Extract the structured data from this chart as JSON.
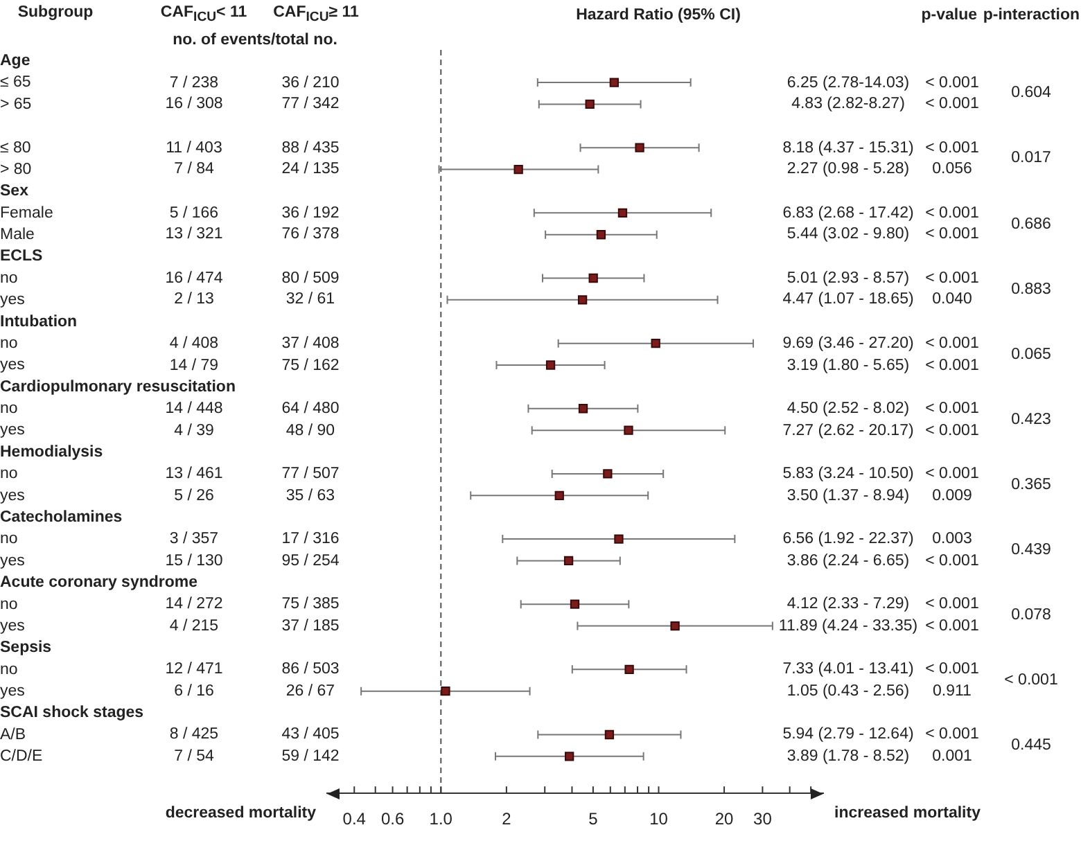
{
  "chart_data": {
    "type": "scatter",
    "orientation": "horizontal",
    "log": "x",
    "marker": "square",
    "color": "#7b1c1c",
    "categories": [
      "Age",
      "≤ 65",
      "> 65",
      null,
      "≤ 80",
      "> 80",
      "Sex",
      "Female",
      "Male",
      "ECLS",
      "no",
      "yes",
      "Intubation",
      "no",
      "yes",
      "Cardiopulmonary resuscitation",
      "no",
      "yes",
      "Hemodialysis",
      "no",
      "yes",
      "Catecholamines",
      "no",
      "yes",
      "Acute coronary syndrome",
      "no",
      "yes",
      "Sepsis",
      "no",
      "yes",
      "SCAI shock stages",
      "A/B",
      "C/D/E"
    ],
    "values": [
      null,
      6.25,
      4.83,
      null,
      8.18,
      2.27,
      null,
      6.83,
      5.44,
      null,
      5.01,
      4.47,
      null,
      9.69,
      3.19,
      null,
      4.5,
      7.27,
      null,
      5.83,
      3.5,
      null,
      6.56,
      3.86,
      null,
      4.12,
      11.89,
      null,
      7.33,
      1.05,
      null,
      5.94,
      3.89
    ],
    "errors": [
      null,
      [
        2.78,
        14.03
      ],
      [
        2.82,
        8.27
      ],
      null,
      [
        4.37,
        15.31
      ],
      [
        0.98,
        5.28
      ],
      null,
      [
        2.68,
        17.42
      ],
      [
        3.02,
        9.8
      ],
      null,
      [
        2.93,
        8.57
      ],
      [
        1.07,
        18.65
      ],
      null,
      [
        3.46,
        27.2
      ],
      [
        1.8,
        5.65
      ],
      null,
      [
        2.52,
        8.02
      ],
      [
        2.62,
        20.17
      ],
      null,
      [
        3.24,
        10.5
      ],
      [
        1.37,
        8.94
      ],
      null,
      [
        1.92,
        22.37
      ],
      [
        2.24,
        6.65
      ],
      null,
      [
        2.33,
        7.29
      ],
      [
        4.24,
        33.35
      ],
      null,
      [
        4.01,
        13.41
      ],
      [
        0.43,
        2.56
      ],
      null,
      [
        2.79,
        12.64
      ],
      [
        1.78,
        8.52
      ]
    ],
    "xlim": [
      0.3,
      57
    ],
    "xticks": [
      0.4,
      {
        "value": 0.5,
        "label": null
      },
      0.6,
      {
        "value": 0.7,
        "label": null
      },
      {
        "value": 0.8,
        "label": null
      },
      {
        "value": 0.9,
        "label": null
      },
      {
        "value": 1,
        "label": "1.0"
      },
      2,
      {
        "value": 3,
        "label": null
      },
      {
        "value": 4,
        "label": null
      },
      5,
      {
        "value": 6,
        "label": null
      },
      {
        "value": 7,
        "label": null
      },
      {
        "value": 8,
        "label": null
      },
      {
        "value": 9,
        "label": null
      },
      10,
      20,
      30,
      {
        "value": 40,
        "label": null
      },
      {
        "value": 50,
        "label": null
      }
    ],
    "ref_lines": [
      {
        "axis": "x",
        "value": 1,
        "line_style": "dashed"
      }
    ],
    "annotations": [
      "Subgroup",
      "CAF$_{ICU}$< 11",
      "CAF$_{ICU}$≥ 11",
      "no. of events/total no.",
      "Hazard Ratio (95% CI)",
      "p-value",
      "p-interaction",
      "decreased mortality",
      "increased mortality",
      "7 / 238",
      "36 / 210",
      "6.25 (2.78-14.03)",
      "< 0.001",
      "0.604",
      "16 / 308",
      "77 / 342",
      "4.83 (2.82-8.27)",
      "< 0.001",
      "11 / 403",
      "88 / 435",
      "8.18 (4.37 - 15.31)",
      "< 0.001",
      "0.017",
      "7 / 84",
      "24 / 135",
      "2.27 (0.98 - 5.28)",
      "0.056",
      "5 / 166",
      "36 / 192",
      "6.83 (2.68 - 17.42)",
      "< 0.001",
      "0.686",
      "13 / 321",
      "76 / 378",
      "5.44 (3.02 - 9.80)",
      "< 0.001",
      "16 / 474",
      "80 / 509",
      "5.01 (2.93 - 8.57)",
      "< 0.001",
      "0.883",
      "2 / 13",
      "32 / 61",
      "4.47 (1.07 - 18.65)",
      "0.040",
      "4 / 408",
      "37 / 408",
      "9.69 (3.46 - 27.20)",
      "< 0.001",
      "0.065",
      "14 / 79",
      "75 / 162",
      "3.19 (1.80 - 5.65)",
      "< 0.001",
      "14 / 448",
      "64 / 480",
      "4.50 (2.52 - 8.02)",
      "< 0.001",
      "0.423",
      "4 / 39",
      "48 / 90",
      "7.27 (2.62 - 20.17)",
      "< 0.001",
      "13 / 461",
      "77 / 507",
      "5.83 (3.24 - 10.50)",
      "< 0.001",
      "0.365",
      "5 / 26",
      "35 / 63",
      "3.50 (1.37 - 8.94)",
      "0.009",
      "3 / 357",
      "17 / 316",
      "6.56 (1.92 - 22.37)",
      "0.003",
      "0.439",
      "15 / 130",
      "95 / 254",
      "3.86 (2.24 - 6.65)",
      "< 0.001",
      "14 / 272",
      "75 / 385",
      "4.12 (2.33 - 7.29)",
      "< 0.001",
      "0.078",
      "4 / 215",
      "37 / 185",
      "11.89 (4.24 - 33.35)",
      "< 0.001",
      "12 / 471",
      "86 / 503",
      "7.33 (4.01 - 13.41)",
      "< 0.001",
      "< 0.001",
      "6 / 16",
      "26 / 67",
      "1.05 (0.43 - 2.56)",
      "0.911",
      "8 / 425",
      "43 / 405",
      "5.94 (2.79 - 12.64)",
      "< 0.001",
      "0.445",
      "7 / 54",
      "59 / 142",
      "3.89 (1.78 - 8.52)",
      "0.001"
    ]
  }
}
